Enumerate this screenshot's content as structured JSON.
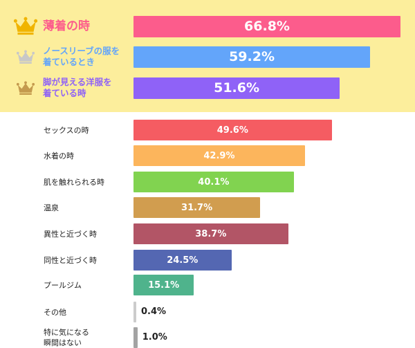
{
  "chart_data": {
    "type": "bar",
    "orientation": "horizontal",
    "unit": "%",
    "xlim": [
      0,
      66.8
    ],
    "categories": [
      "薄着の時",
      "ノースリーブの服を着ているとき",
      "脚が見える洋服を着ている時",
      "セックスの時",
      "水着の時",
      "肌を触れられる時",
      "温泉",
      "異性と近づく時",
      "同性と近づく時",
      "プールジム",
      "その他",
      "特に気になる瞬間はない"
    ],
    "label_lines": [
      [
        "薄着の時"
      ],
      [
        "ノースリーブの服を",
        "着ているとき"
      ],
      [
        "脚が見える洋服を",
        "着ている時"
      ],
      [
        "セックスの時"
      ],
      [
        "水着の時"
      ],
      [
        "肌を触れられる時"
      ],
      [
        "温泉"
      ],
      [
        "異性と近づく時"
      ],
      [
        "同性と近づく時"
      ],
      [
        "プールジム"
      ],
      [
        "その他"
      ],
      [
        "特に気になる",
        "瞬間はない"
      ]
    ],
    "values": [
      66.8,
      59.2,
      51.6,
      49.6,
      42.9,
      40.1,
      31.7,
      38.7,
      24.5,
      15.1,
      0.4,
      1.0
    ],
    "value_labels": [
      "66.8%",
      "59.2%",
      "51.6%",
      "49.6%",
      "42.9%",
      "40.1%",
      "31.7%",
      "38.7%",
      "24.5%",
      "15.1%",
      "0.4%",
      "1.0%"
    ],
    "colors": [
      "#fc5c8c",
      "#63a5fa",
      "#8f62f7",
      "#f55c62",
      "#fcb55c",
      "#81d350",
      "#d19d4f",
      "#b25566",
      "#5467b2",
      "#4fb38c",
      "#cccccc",
      "#a3a3a3"
    ],
    "label_colors": [
      "#fc5c8c",
      "#63a5fa",
      "#8f62f7",
      "#222222",
      "#222222",
      "#222222",
      "#222222",
      "#222222",
      "#222222",
      "#222222",
      "#222222",
      "#222222"
    ],
    "ranks": [
      {
        "icon": "gold-crown-icon",
        "color": "#f0b400"
      },
      {
        "icon": "silver-crown-icon",
        "color": "#c8c8c8"
      },
      {
        "icon": "bronze-crown-icon",
        "color": "#c49a4e"
      }
    ],
    "highlight_background": "#fcee9c"
  }
}
